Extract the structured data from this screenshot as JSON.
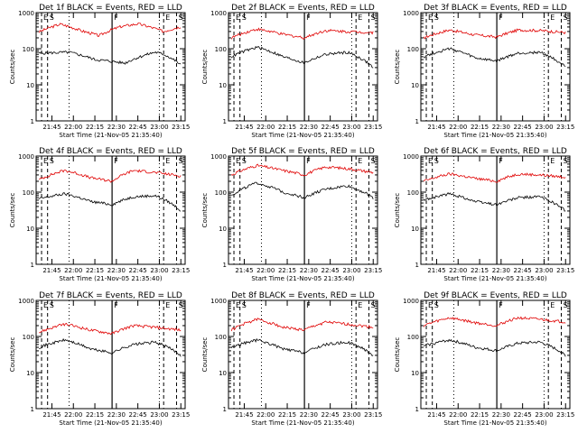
{
  "chart_data": [
    {
      "type": "line",
      "title": "Det 1f BLACK = Events, RED = LLD",
      "xlabel": "Start Time (21-Nov-05 21:35:40)",
      "ylabel": "Counts/sec",
      "yscale": "log",
      "ylim": [
        1,
        1000
      ],
      "xlim": [
        21.5667,
        23.3
      ],
      "xtick_labels": [
        "21:45",
        "22:00",
        "22:15",
        "22:30",
        "22:45",
        "23:00",
        "23:15"
      ],
      "ytick_labels": [
        "1",
        "10",
        "100",
        "1000"
      ],
      "events_x": [
        21.6,
        21.95,
        22.25,
        22.6,
        22.95,
        23.05,
        23.25
      ],
      "events_y": [
        75,
        80,
        50,
        40,
        80,
        70,
        35
      ],
      "lld_x": [
        21.6,
        21.85,
        22.1,
        22.3,
        22.55,
        22.75,
        23.05,
        23.25
      ],
      "lld_y": [
        290,
        480,
        310,
        230,
        410,
        490,
        300,
        410
      ],
      "markers": [
        {
          "label": "E",
          "x": 21.63
        },
        {
          "label": "S",
          "x": 21.7
        },
        {
          "label": "F",
          "x": 22.45
        },
        {
          "label": "E",
          "x": 23.05
        },
        {
          "label": "S",
          "x": 23.2
        }
      ]
    },
    {
      "type": "line",
      "title": "Det 2f BLACK = Events, RED = LLD",
      "xlabel": "Start Time (21-Nov-05 21:35:40)",
      "ylabel": "Counts/sec",
      "yscale": "log",
      "ylim": [
        1,
        1000
      ],
      "xlim": [
        21.5667,
        23.3
      ],
      "xtick_labels": [
        "21:45",
        "22:00",
        "22:15",
        "22:30",
        "22:45",
        "23:00",
        "23:15"
      ],
      "ytick_labels": [
        "1",
        "10",
        "100",
        "1000"
      ],
      "events_x": [
        21.6,
        21.9,
        22.2,
        22.45,
        22.7,
        22.95,
        23.25
      ],
      "events_y": [
        60,
        110,
        60,
        40,
        70,
        80,
        30
      ],
      "lld_x": [
        21.6,
        21.9,
        22.2,
        22.45,
        22.7,
        22.95,
        23.25
      ],
      "lld_y": [
        200,
        350,
        250,
        200,
        320,
        300,
        280
      ],
      "markers": [
        {
          "label": "E",
          "x": 21.63
        },
        {
          "label": "S",
          "x": 21.7
        },
        {
          "label": "F",
          "x": 22.45
        },
        {
          "label": "E",
          "x": 23.05
        },
        {
          "label": "S",
          "x": 23.2
        }
      ]
    },
    {
      "type": "line",
      "title": "Det 3f BLACK = Events, RED = LLD",
      "xlabel": "Start Time (21-Nov-05 21:35:40)",
      "ylabel": "Counts/sec",
      "yscale": "log",
      "ylim": [
        1,
        1000
      ],
      "xlim": [
        21.5667,
        23.3
      ],
      "xtick_labels": [
        "21:45",
        "22:00",
        "22:15",
        "22:30",
        "22:45",
        "23:00",
        "23:15"
      ],
      "ytick_labels": [
        "1",
        "10",
        "100",
        "1000"
      ],
      "events_x": [
        21.6,
        21.9,
        22.2,
        22.45,
        22.7,
        22.95,
        23.25
      ],
      "events_y": [
        60,
        100,
        55,
        45,
        75,
        80,
        30
      ],
      "lld_x": [
        21.6,
        21.9,
        22.2,
        22.45,
        22.7,
        22.95,
        23.25
      ],
      "lld_y": [
        200,
        330,
        240,
        210,
        330,
        320,
        280
      ],
      "markers": [
        {
          "label": "E",
          "x": 21.63
        },
        {
          "label": "S",
          "x": 21.7
        },
        {
          "label": "F",
          "x": 22.45
        },
        {
          "label": "E",
          "x": 23.05
        },
        {
          "label": "S",
          "x": 23.2
        }
      ]
    },
    {
      "type": "line",
      "title": "Det 4f BLACK = Events, RED = LLD",
      "xlabel": "Start Time (21-Nov-05 21:35:40)",
      "ylabel": "Counts/sec",
      "yscale": "log",
      "ylim": [
        1,
        1000
      ],
      "xlim": [
        21.5667,
        23.3
      ],
      "xtick_labels": [
        "21:45",
        "22:00",
        "22:15",
        "22:30",
        "22:45",
        "23:00",
        "23:15"
      ],
      "ytick_labels": [
        "1",
        "10",
        "100",
        "1000"
      ],
      "events_x": [
        21.6,
        21.9,
        22.2,
        22.45,
        22.7,
        22.95,
        23.25
      ],
      "events_y": [
        65,
        90,
        55,
        45,
        75,
        80,
        30
      ],
      "lld_x": [
        21.6,
        21.9,
        22.2,
        22.45,
        22.7,
        22.95,
        23.25
      ],
      "lld_y": [
        220,
        400,
        250,
        200,
        400,
        350,
        280
      ],
      "markers": [
        {
          "label": "E",
          "x": 21.63
        },
        {
          "label": "S",
          "x": 21.7
        },
        {
          "label": "F",
          "x": 22.45
        },
        {
          "label": "E",
          "x": 23.05
        },
        {
          "label": "S",
          "x": 23.2
        }
      ]
    },
    {
      "type": "line",
      "title": "Det 5f BLACK = Events, RED = LLD",
      "xlabel": "Start Time (21-Nov-05 21:35:40)",
      "ylabel": "Counts/sec",
      "yscale": "log",
      "ylim": [
        1,
        1000
      ],
      "xlim": [
        21.5667,
        23.3
      ],
      "xtick_labels": [
        "21:45",
        "22:00",
        "22:15",
        "22:30",
        "22:45",
        "23:00",
        "23:15"
      ],
      "ytick_labels": [
        "1",
        "10",
        "100",
        "1000"
      ],
      "events_x": [
        21.6,
        21.9,
        22.2,
        22.45,
        22.7,
        22.95,
        23.25
      ],
      "events_y": [
        80,
        180,
        100,
        70,
        120,
        150,
        70
      ],
      "lld_x": [
        21.6,
        21.9,
        22.2,
        22.45,
        22.7,
        22.95,
        23.25
      ],
      "lld_y": [
        300,
        550,
        400,
        300,
        500,
        450,
        350
      ],
      "markers": [
        {
          "label": "E",
          "x": 21.63
        },
        {
          "label": "S",
          "x": 21.7
        },
        {
          "label": "F",
          "x": 22.45
        },
        {
          "label": "E",
          "x": 23.05
        },
        {
          "label": "S",
          "x": 23.2
        }
      ]
    },
    {
      "type": "line",
      "title": "Det 6f BLACK = Events, RED = LLD",
      "xlabel": "Start Time (21-Nov-05 21:35:40)",
      "ylabel": "Counts/sec",
      "yscale": "log",
      "ylim": [
        1,
        1000
      ],
      "xlim": [
        21.5667,
        23.3
      ],
      "xtick_labels": [
        "21:45",
        "22:00",
        "22:15",
        "22:30",
        "22:45",
        "23:00",
        "23:15"
      ],
      "ytick_labels": [
        "1",
        "10",
        "100",
        "1000"
      ],
      "events_x": [
        21.6,
        21.9,
        22.2,
        22.45,
        22.7,
        22.95,
        23.25
      ],
      "events_y": [
        60,
        90,
        55,
        45,
        70,
        75,
        30
      ],
      "lld_x": [
        21.6,
        21.9,
        22.2,
        22.45,
        22.7,
        22.95,
        23.25
      ],
      "lld_y": [
        200,
        320,
        240,
        200,
        320,
        300,
        260
      ],
      "markers": [
        {
          "label": "E",
          "x": 21.63
        },
        {
          "label": "S",
          "x": 21.7
        },
        {
          "label": "F",
          "x": 22.45
        },
        {
          "label": "E",
          "x": 23.05
        },
        {
          "label": "S",
          "x": 23.2
        }
      ]
    },
    {
      "type": "line",
      "title": "Det 7f BLACK = Events, RED = LLD",
      "xlabel": "Start Time (21-Nov-05 21:35:40)",
      "ylabel": "Counts/sec",
      "yscale": "log",
      "ylim": [
        1,
        1000
      ],
      "xlim": [
        21.5667,
        23.3
      ],
      "xtick_labels": [
        "21:45",
        "22:00",
        "22:15",
        "22:30",
        "22:45",
        "23:00",
        "23:15"
      ],
      "ytick_labels": [
        "1",
        "10",
        "100",
        "1000"
      ],
      "events_x": [
        21.6,
        21.9,
        22.2,
        22.45,
        22.7,
        22.95,
        23.25
      ],
      "events_y": [
        50,
        80,
        45,
        35,
        60,
        70,
        30
      ],
      "lld_x": [
        21.6,
        21.9,
        22.2,
        22.45,
        22.7,
        22.95,
        23.25
      ],
      "lld_y": [
        130,
        220,
        150,
        120,
        200,
        180,
        150
      ],
      "markers": [
        {
          "label": "E",
          "x": 21.63
        },
        {
          "label": "S",
          "x": 21.7
        },
        {
          "label": "F",
          "x": 22.45
        },
        {
          "label": "E",
          "x": 23.05
        },
        {
          "label": "S",
          "x": 23.2
        }
      ]
    },
    {
      "type": "line",
      "title": "Det 8f BLACK = Events, RED = LLD",
      "xlabel": "Start Time (21-Nov-05 21:35:40)",
      "ylabel": "Counts/sec",
      "yscale": "log",
      "ylim": [
        1,
        1000
      ],
      "xlim": [
        21.5667,
        23.3
      ],
      "xtick_labels": [
        "21:45",
        "22:00",
        "22:15",
        "22:30",
        "22:45",
        "23:00",
        "23:15"
      ],
      "ytick_labels": [
        "1",
        "10",
        "100",
        "1000"
      ],
      "events_x": [
        21.6,
        21.9,
        22.2,
        22.45,
        22.7,
        22.95,
        23.25
      ],
      "events_y": [
        50,
        80,
        45,
        35,
        60,
        70,
        30
      ],
      "lld_x": [
        21.6,
        21.9,
        22.2,
        22.45,
        22.7,
        22.95,
        23.25
      ],
      "lld_y": [
        150,
        300,
        180,
        150,
        250,
        220,
        180
      ],
      "markers": [
        {
          "label": "E",
          "x": 21.63
        },
        {
          "label": "S",
          "x": 21.7
        },
        {
          "label": "F",
          "x": 22.45
        },
        {
          "label": "E",
          "x": 23.05
        },
        {
          "label": "S",
          "x": 23.2
        }
      ]
    },
    {
      "type": "line",
      "title": "Det 9f BLACK = Events, RED = LLD",
      "xlabel": "Start Time (21-Nov-05 21:35:40)",
      "ylabel": "Counts/sec",
      "yscale": "log",
      "ylim": [
        1,
        1000
      ],
      "xlim": [
        21.5667,
        23.3
      ],
      "xtick_labels": [
        "21:45",
        "22:00",
        "22:15",
        "22:30",
        "22:45",
        "23:00",
        "23:15"
      ],
      "ytick_labels": [
        "1",
        "10",
        "100",
        "1000"
      ],
      "events_x": [
        21.6,
        21.9,
        22.2,
        22.45,
        22.7,
        22.95,
        23.25
      ],
      "events_y": [
        55,
        80,
        50,
        40,
        65,
        70,
        30
      ],
      "lld_x": [
        21.6,
        21.9,
        22.2,
        22.45,
        22.7,
        22.95,
        23.25
      ],
      "lld_y": [
        200,
        330,
        240,
        200,
        330,
        300,
        250
      ],
      "markers": [
        {
          "label": "E",
          "x": 21.63
        },
        {
          "label": "S",
          "x": 21.7
        },
        {
          "label": "F",
          "x": 22.45
        },
        {
          "label": "E",
          "x": 23.05
        },
        {
          "label": "S",
          "x": 23.2
        }
      ]
    }
  ],
  "colors": {
    "events": "#000000",
    "lld": "#e00000",
    "axis": "#000000"
  }
}
